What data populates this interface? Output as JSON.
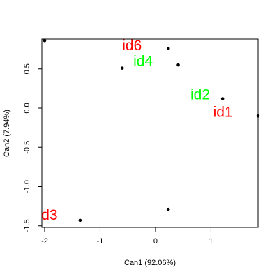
{
  "chart_data": {
    "type": "scatter",
    "xlabel": "Can1 (92.06%)",
    "ylabel": "Can2 (7.94%)",
    "xlim": [
      -2.05,
      1.85
    ],
    "ylim": [
      -1.52,
      0.88
    ],
    "xticks": [
      -2,
      -1,
      0,
      1
    ],
    "yticks": [
      -1.5,
      -1.0,
      -0.5,
      0.0,
      0.5
    ],
    "xtick_labels": [
      "-2",
      "-1",
      "0",
      "1"
    ],
    "ytick_labels": [
      "-1.5",
      "-1.0",
      "-0.5",
      "0.0",
      "0.5"
    ],
    "grid": false,
    "points": [
      {
        "x": -2.0,
        "y": 0.86
      },
      {
        "x": 0.23,
        "y": 0.76
      },
      {
        "x": -0.6,
        "y": 0.51
      },
      {
        "x": 0.41,
        "y": 0.55
      },
      {
        "x": 1.21,
        "y": 0.12
      },
      {
        "x": 1.85,
        "y": -0.1
      },
      {
        "x": -1.36,
        "y": -1.43
      },
      {
        "x": 0.23,
        "y": -1.29
      }
    ],
    "labels": [
      {
        "text": "id6",
        "x": -0.6,
        "y": 0.74,
        "color": "#ff0000"
      },
      {
        "text": "id4",
        "x": -0.4,
        "y": 0.54,
        "color": "#00ff00"
      },
      {
        "text": "id2",
        "x": 0.63,
        "y": 0.11,
        "color": "#00ff00"
      },
      {
        "text": "id1",
        "x": 1.04,
        "y": -0.11,
        "color": "#ff0000"
      },
      {
        "text": "d3",
        "x": -2.06,
        "y": -1.42,
        "color": "#ff0000"
      }
    ]
  }
}
